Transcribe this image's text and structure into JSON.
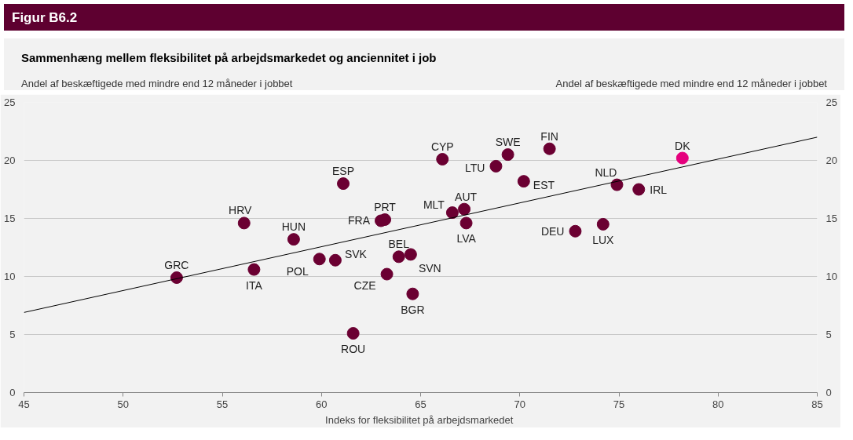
{
  "chart_data": {
    "type": "scatter",
    "title": "Figur B6.2",
    "subtitle": "Sammenhæng mellem fleksibilitet på arbejdsmarkedet og anciennitet i job",
    "xlabel": "Indeks  for fleksibilitet på arbejdsmarkedet",
    "ylabel": "Andel af beskæftigede med mindre  end  12 måneder  i jobbet",
    "y2label": "Andel af beskæftigede med mindre  end  12 måneder  i jobbet",
    "xlim": [
      45,
      85
    ],
    "xticks": [
      45,
      50,
      55,
      60,
      65,
      70,
      75,
      80,
      85
    ],
    "ylim": [
      0,
      25
    ],
    "yticks": [
      0,
      5,
      10,
      15,
      20,
      25
    ],
    "y2lim": [
      0,
      25
    ],
    "y2ticks": [
      0,
      5,
      10,
      15,
      20,
      25
    ],
    "grid": "y",
    "marker": "circle",
    "series": [
      {
        "color": "#6b0032",
        "x": [
          52.7,
          56.6,
          56.1,
          58.6,
          59.9,
          60.7,
          61.1,
          61.6,
          63.0,
          63.2,
          63.3,
          63.9,
          64.5,
          64.6,
          66.1,
          66.6,
          67.2,
          67.3,
          68.8,
          69.4,
          70.2,
          71.5,
          72.8,
          74.2,
          74.9,
          76.0
        ],
        "values": [
          9.9,
          10.6,
          14.6,
          13.2,
          11.5,
          11.4,
          18.0,
          5.1,
          14.8,
          14.9,
          10.2,
          11.7,
          11.9,
          8.5,
          20.1,
          15.5,
          15.8,
          14.6,
          19.5,
          20.5,
          18.2,
          21.0,
          13.9,
          14.5,
          17.9,
          17.5
        ]
      },
      {
        "color": "#e5007d",
        "x": [
          78.2
        ],
        "values": [
          20.2
        ]
      },
      {
        "type": "line",
        "color": "#000000",
        "marker": "none",
        "x": [
          45,
          85
        ],
        "values": [
          6.9,
          22.0
        ]
      }
    ],
    "annotations": [
      {
        "text": "GRC",
        "x": 52.7,
        "y": 9.9
      },
      {
        "text": "ITA",
        "x": 56.6,
        "y": 10.6
      },
      {
        "text": "HRV",
        "x": 56.1,
        "y": 14.6
      },
      {
        "text": "HUN",
        "x": 58.6,
        "y": 13.2
      },
      {
        "text": "POL",
        "x": 59.9,
        "y": 11.5
      },
      {
        "text": "SVK",
        "x": 60.7,
        "y": 11.4
      },
      {
        "text": "ESP",
        "x": 61.1,
        "y": 18.0
      },
      {
        "text": "ROU",
        "x": 61.6,
        "y": 5.1
      },
      {
        "text": "FRA",
        "x": 63.0,
        "y": 14.8
      },
      {
        "text": "PRT",
        "x": 63.2,
        "y": 14.9
      },
      {
        "text": "CZE",
        "x": 63.3,
        "y": 10.2
      },
      {
        "text": "BEL",
        "x": 63.9,
        "y": 11.7
      },
      {
        "text": "SVN",
        "x": 64.5,
        "y": 11.9
      },
      {
        "text": "BGR",
        "x": 64.6,
        "y": 8.5
      },
      {
        "text": "CYP",
        "x": 66.1,
        "y": 20.1
      },
      {
        "text": "MLT",
        "x": 66.6,
        "y": 15.5
      },
      {
        "text": "AUT",
        "x": 67.2,
        "y": 15.8
      },
      {
        "text": "LVA",
        "x": 67.3,
        "y": 14.6
      },
      {
        "text": "LTU",
        "x": 68.8,
        "y": 19.5
      },
      {
        "text": "SWE",
        "x": 69.4,
        "y": 20.5
      },
      {
        "text": "EST",
        "x": 70.2,
        "y": 18.2
      },
      {
        "text": "FIN",
        "x": 71.5,
        "y": 21.0
      },
      {
        "text": "DEU",
        "x": 72.8,
        "y": 13.9
      },
      {
        "text": "LUX",
        "x": 74.2,
        "y": 14.5
      },
      {
        "text": "NLD",
        "x": 74.9,
        "y": 17.9
      },
      {
        "text": "IRL",
        "x": 76.0,
        "y": 17.5
      },
      {
        "text": "DK",
        "x": 78.2,
        "y": 20.2
      }
    ]
  }
}
